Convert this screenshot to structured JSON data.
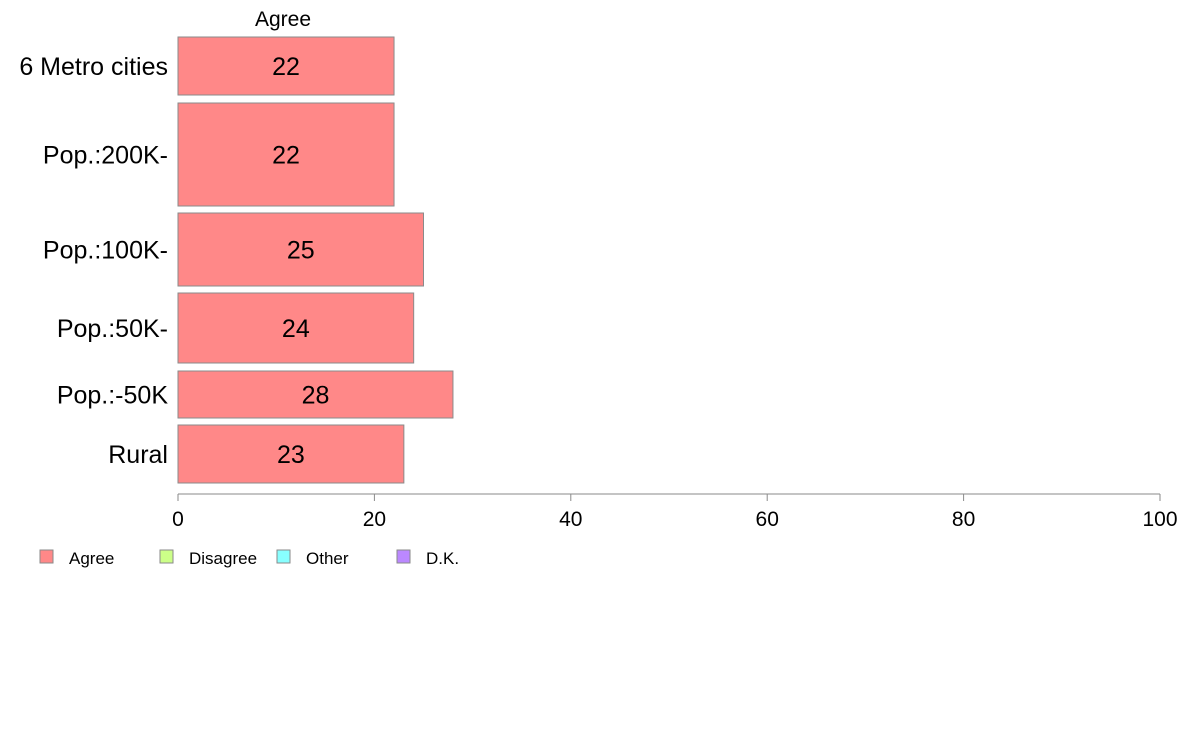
{
  "chart_data": {
    "type": "bar",
    "orientation": "horizontal",
    "segment_label": "Agree",
    "categories": [
      "6 Metro cities",
      "Pop.:200K-",
      "Pop.:100K-",
      "Pop.:50K-",
      "Pop.:-50K",
      "Rural"
    ],
    "series": [
      {
        "name": "Agree",
        "values": [
          22,
          22,
          25,
          24,
          28,
          23
        ],
        "color": "#FF8888"
      }
    ],
    "xlim": [
      0,
      100
    ],
    "xticks": [
      "0",
      "20",
      "40",
      "60",
      "80",
      "100"
    ],
    "legend": {
      "position": "bottom-left",
      "items": [
        {
          "label": "Agree",
          "color": "#FF8888"
        },
        {
          "label": "Disagree",
          "color": "#CCFF88"
        },
        {
          "label": "Other",
          "color": "#88FFFF"
        },
        {
          "label": "D.K.",
          "color": "#BB88FF"
        }
      ]
    },
    "grid": false
  }
}
